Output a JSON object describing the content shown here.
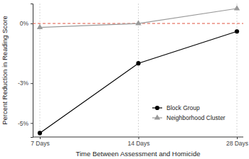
{
  "chart_data": {
    "type": "line",
    "x_label": "Time Between Assessment and Homicide",
    "y_label": "Percent Reduction in Reading Score",
    "categories": [
      "7 Days",
      "14 Days",
      "28 Days"
    ],
    "series": [
      {
        "name": "Block Group",
        "color": "#000000",
        "marker": "circle",
        "line_style": "solid",
        "values": [
          -5.5,
          -2.0,
          -0.4
        ]
      },
      {
        "name": "Neighborhood Cluster",
        "color": "#999999",
        "marker": "triangle",
        "line_style": "solid",
        "values": [
          -0.2,
          0,
          0.75
        ]
      }
    ],
    "hline": 0,
    "ylim": [
      -5.7,
      1.0
    ],
    "yticks": [
      {
        "value": -5,
        "label": "-5%"
      },
      {
        "value": -3,
        "label": "-3%"
      },
      {
        "value": 0,
        "label": "0%"
      }
    ],
    "grid": true,
    "legend": "lower right"
  }
}
